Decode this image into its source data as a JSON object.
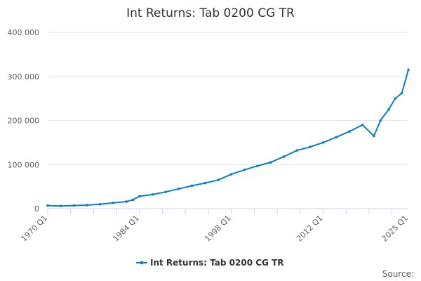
{
  "chart_data": {
    "type": "line",
    "title": "Int Returns: Tab 0200 CG TR",
    "xlabel": "",
    "ylabel": "",
    "ylim": [
      0,
      400000
    ],
    "y_ticks": [
      0,
      100000,
      200000,
      300000,
      400000
    ],
    "y_tick_labels": [
      "0",
      "100 000",
      "200 000",
      "300 000",
      "400 000"
    ],
    "x_tick_labels": [
      "1970 Q1",
      "1984 Q1",
      "1998 Q1",
      "2012 Q1",
      "2025 Q1"
    ],
    "x_tick_years": [
      1970,
      1984,
      1998,
      2012,
      2025
    ],
    "legend_position": "bottom-center",
    "grid": "horizontal",
    "series": [
      {
        "name": "Int Returns: Tab 0200 CG TR",
        "color": "#0a7fc2",
        "points": [
          [
            "1970 Q1",
            7000
          ],
          [
            "1972 Q1",
            6000
          ],
          [
            "1974 Q1",
            7000
          ],
          [
            "1976 Q1",
            8000
          ],
          [
            "1978 Q1",
            10000
          ],
          [
            "1980 Q1",
            13000
          ],
          [
            "1982 Q1",
            16000
          ],
          [
            "1983 Q1",
            20000
          ],
          [
            "1984 Q1",
            28000
          ],
          [
            "1986 Q1",
            32000
          ],
          [
            "1988 Q1",
            38000
          ],
          [
            "1990 Q1",
            45000
          ],
          [
            "1992 Q1",
            52000
          ],
          [
            "1994 Q1",
            58000
          ],
          [
            "1996 Q1",
            65000
          ],
          [
            "1998 Q1",
            78000
          ],
          [
            "2000 Q1",
            88000
          ],
          [
            "2002 Q1",
            97000
          ],
          [
            "2004 Q1",
            105000
          ],
          [
            "2006 Q1",
            118000
          ],
          [
            "2008 Q1",
            132000
          ],
          [
            "2010 Q1",
            140000
          ],
          [
            "2012 Q1",
            150000
          ],
          [
            "2014 Q1",
            162000
          ],
          [
            "2016 Q1",
            175000
          ],
          [
            "2018 Q1",
            190000
          ],
          [
            "2019 Q4",
            165000
          ],
          [
            "2020 Q4",
            200000
          ],
          [
            "2022 Q1",
            225000
          ],
          [
            "2023 Q1",
            250000
          ],
          [
            "2024 Q1",
            262000
          ],
          [
            "2025 Q1",
            315000
          ]
        ]
      }
    ]
  },
  "credits": "Source:"
}
